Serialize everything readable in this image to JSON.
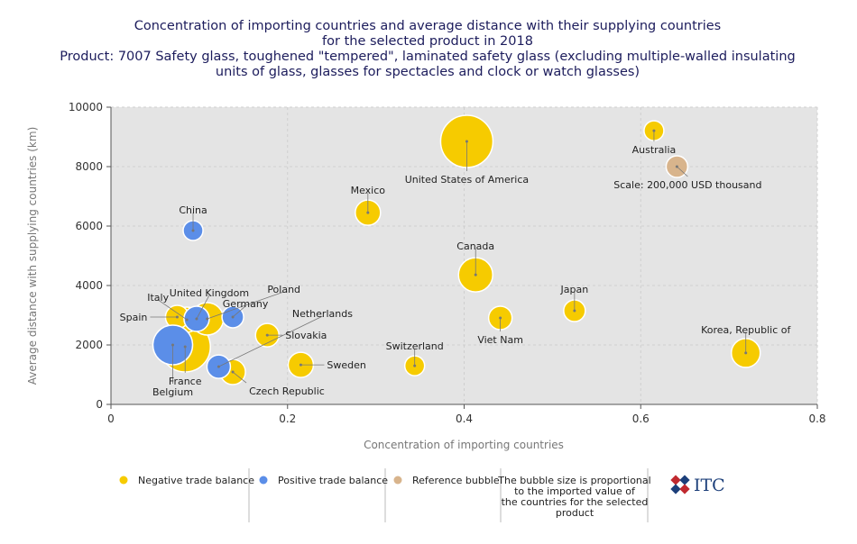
{
  "chart_data": {
    "type": "bubble",
    "title": [
      "Concentration of importing countries and average distance with their supplying countries",
      "for the selected product in 2018",
      "Product: 7007 Safety glass, toughened \"tempered\", laminated safety glass (excluding multiple-walled insulating",
      "units of glass, glasses for spectacles and clock or watch glasses)"
    ],
    "x_label": "Concentration of importing countries",
    "y_label": "Average distance with supplying countries (km)",
    "xlim": [
      0,
      0.8
    ],
    "ylim": [
      0,
      10000
    ],
    "xticks": [
      0,
      0.2,
      0.4,
      0.6,
      0.8
    ],
    "yticks": [
      0,
      2000,
      4000,
      6000,
      8000,
      10000
    ],
    "grid": true,
    "series": [
      {
        "name": "Negative trade balance",
        "color": "#f6cb00",
        "labels": [
          "United States of America",
          "France",
          "Canada",
          "Poland",
          "Korea, Republic of",
          "Mexico",
          "Sweden",
          "Czech Republic",
          "Italy",
          "Slovakia",
          "Viet Nam",
          "Spain",
          "Australia",
          "Japan",
          "Switzerland"
        ],
        "x": [
          0.403,
          0.084,
          0.413,
          0.109,
          0.719,
          0.291,
          0.215,
          0.138,
          0.086,
          0.177,
          0.441,
          0.075,
          0.615,
          0.525,
          0.344
        ],
        "values": [
          8850,
          1940,
          4360,
          2880,
          1730,
          6450,
          1330,
          1090,
          2850,
          2330,
          2910,
          2940,
          9210,
          3150,
          1300
        ],
        "sizes": [
          1168000,
          1089000,
          501000,
          450000,
          356000,
          272000,
          272000,
          272000,
          272000,
          235000,
          235000,
          235000,
          168000,
          200000,
          168000
        ]
      },
      {
        "name": "Positive trade balance",
        "color": "#5b8ee8",
        "labels": [
          "Belgium",
          "United Kingdom",
          "Netherlands",
          "China",
          "Germany"
        ],
        "x": [
          0.07,
          0.097,
          0.122,
          0.093,
          0.138
        ],
        "values": [
          2000,
          2880,
          1270,
          5850,
          2940
        ],
        "sizes": [
          672000,
          272000,
          235000,
          168000,
          200000
        ]
      }
    ],
    "reference": {
      "name": "Reference bubble",
      "color": "#d8b48c",
      "label": "Scale: 200,000 USD thousand",
      "x": 0.641,
      "value": 8000,
      "size": 200000
    },
    "note": [
      "The bubble size is proportional",
      "to the imported value of",
      "the countries for the selected",
      "product"
    ],
    "logo_text": "ITC"
  }
}
